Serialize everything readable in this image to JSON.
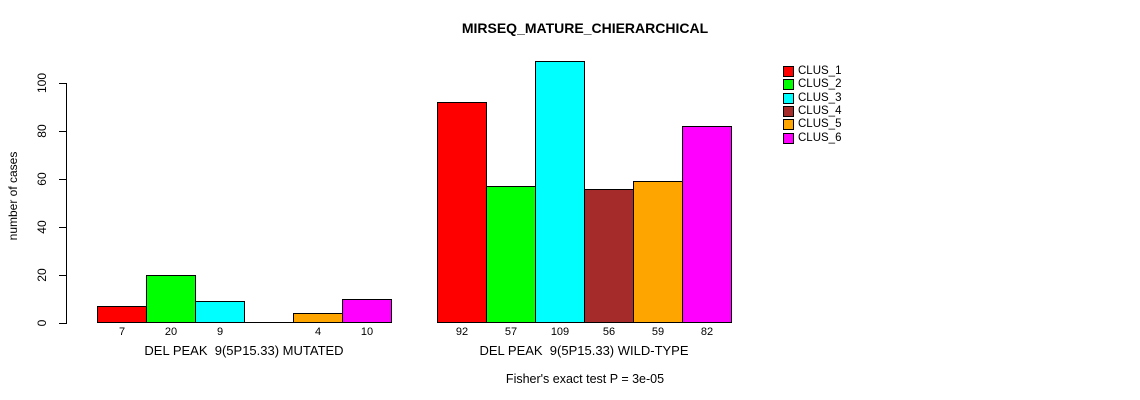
{
  "chart_data": {
    "type": "bar",
    "title": "MIRSEQ_MATURE_CHIERARCHICAL",
    "ylabel": "number of cases",
    "xlabel": "",
    "footer": "Fisher's exact test P = 3e-05",
    "yticks": [
      0,
      20,
      40,
      60,
      80,
      100
    ],
    "ylim": [
      0,
      109
    ],
    "grid": false,
    "legend_position": "right",
    "legend": [
      {
        "label": "CLUS_1",
        "color": "#FF0000"
      },
      {
        "label": "CLUS_2",
        "color": "#00FF00"
      },
      {
        "label": "CLUS_3",
        "color": "#00FFFF"
      },
      {
        "label": "CLUS_4",
        "color": "#A52A2A"
      },
      {
        "label": "CLUS_5",
        "color": "#FFA500"
      },
      {
        "label": "CLUS_6",
        "color": "#FF00FF"
      }
    ],
    "groups": [
      {
        "label": "DEL PEAK  9(5P15.33) MUTATED",
        "values": [
          7,
          20,
          9,
          0,
          4,
          10
        ],
        "bar_labels": [
          "7",
          "20",
          "9",
          "",
          "4",
          "10"
        ]
      },
      {
        "label": "DEL PEAK  9(5P15.33) WILD-TYPE",
        "values": [
          92,
          57,
          109,
          56,
          59,
          82
        ],
        "bar_labels": [
          "92",
          "57",
          "109",
          "56",
          "59",
          "82"
        ]
      }
    ]
  }
}
